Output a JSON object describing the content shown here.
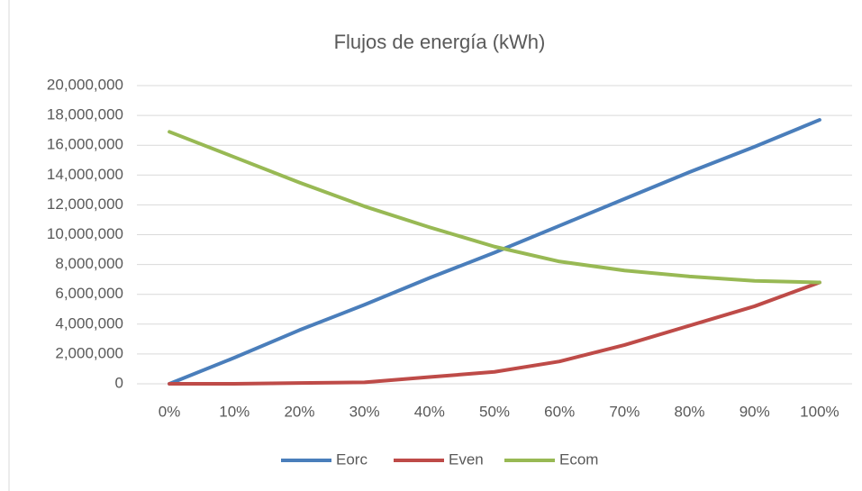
{
  "chart_data": {
    "type": "line",
    "title": "Flujos de energía (kWh)",
    "categories": [
      "0%",
      "10%",
      "20%",
      "30%",
      "40%",
      "50%",
      "60%",
      "70%",
      "80%",
      "90%",
      "100%"
    ],
    "series": [
      {
        "name": "Eorc",
        "color": "#4a7ebb",
        "values": [
          0,
          1750000,
          3600000,
          5300000,
          7100000,
          8800000,
          10600000,
          12400000,
          14200000,
          15900000,
          17700000
        ]
      },
      {
        "name": "Even",
        "color": "#be4b48",
        "values": [
          0,
          0,
          50000,
          100000,
          450000,
          800000,
          1500000,
          2600000,
          3900000,
          5200000,
          6800000
        ]
      },
      {
        "name": "Ecom",
        "color": "#98b954",
        "values": [
          16900000,
          15200000,
          13500000,
          11900000,
          10500000,
          9200000,
          8200000,
          7600000,
          7200000,
          6900000,
          6800000
        ]
      }
    ],
    "ylim": [
      0,
      20000000
    ],
    "yticks": [
      0,
      {
        "value": 2000000,
        "label": "2,000,000"
      },
      {
        "value": 4000000,
        "label": "4,000,000"
      },
      {
        "value": 6000000,
        "label": "6,000,000"
      },
      {
        "value": 8000000,
        "label": "8,000,000"
      },
      {
        "value": 10000000,
        "label": "10,000,000"
      },
      {
        "value": 12000000,
        "label": "12,000,000"
      },
      {
        "value": 14000000,
        "label": "14,000,000"
      },
      {
        "value": 16000000,
        "label": "16,000,000"
      },
      {
        "value": 18000000,
        "label": "18,000,000"
      },
      {
        "value": 20000000,
        "label": "20,000,000"
      }
    ],
    "grid": true,
    "legend": "bottom"
  }
}
